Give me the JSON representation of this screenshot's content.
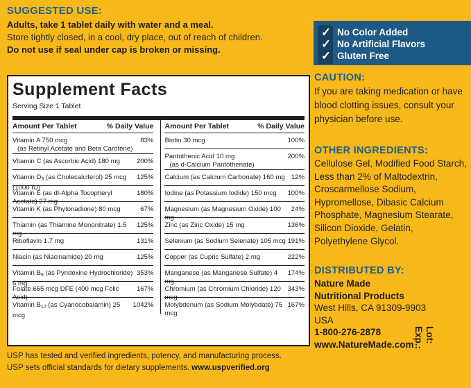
{
  "suggested_use": {
    "title": "SUGGESTED USE:",
    "line1": "Adults, take 1 tablet daily with water and a meal.",
    "line2": "Store tightly closed, in a cool, dry place, out of reach of children.",
    "line3": "Do not use if seal under cap is broken or missing."
  },
  "checks": [
    {
      "icon": "checkmark-icon",
      "label": "No Color Added"
    },
    {
      "icon": "checkmark-icon",
      "label": "No Artificial Flavors"
    },
    {
      "icon": "checkmark-icon",
      "label": "Gluten Free"
    }
  ],
  "caution": {
    "title": "CAUTION:",
    "text": "If you are taking medication or have blood clotting issues, consult your physician before use."
  },
  "other_ingredients": {
    "title": "OTHER INGREDIENTS:",
    "text": "Cellulose Gel, Modified Food Starch, Less than 2% of Maltodextrin, Croscarmellose Sodium, Hypromellose, Dibasic Calcium Phosphate, Magnesium Stearate, Silicon Dioxide, Gelatin, Polyethylene Glycol."
  },
  "distributed": {
    "title": "DISTRIBUTED BY:",
    "company1": "Nature Made",
    "company2": "Nutritional Products",
    "city": "West Hills, CA 91309-9903",
    "country": "USA",
    "phone": "1-800-276-2878",
    "web": "www.NatureMade.com"
  },
  "lot": {
    "lot": "Lot:",
    "exp": "Exp.:"
  },
  "facts": {
    "title": "Supplement Facts",
    "serving": "Serving Size 1 Tablet",
    "col_amount": "Amount Per Tablet",
    "col_dv": "% Daily Value",
    "left": [
      {
        "pre": "Vitamin A 750 mcg",
        "sub": "",
        "post": "",
        "line2": "(as Retinyl Acetate and Beta Carotene)",
        "dv": "83%"
      },
      {
        "pre": "Vitamin C (as Ascorbic Acid) 180 mg",
        "sub": "",
        "post": "",
        "line2": "",
        "dv": "200%"
      },
      {
        "pre": "Vitamin D",
        "sub": "3",
        "post": " (as Cholecalciferol) 25 mcg (1000 IU)",
        "line2": "",
        "dv": "125%"
      },
      {
        "pre": "Vitamin E (as dl-Alpha Tocopheryl Acetate) 27 mg",
        "sub": "",
        "post": "",
        "line2": "",
        "dv": "180%"
      },
      {
        "pre": "Vitamin K (as Phytonadione) 80 mcg",
        "sub": "",
        "post": "",
        "line2": "",
        "dv": "67%"
      },
      {
        "pre": "Thiamin (as Thiamine Mononitrate) 1.5 mg",
        "sub": "",
        "post": "",
        "line2": "",
        "dv": "125%"
      },
      {
        "pre": "Riboflavin 1.7 mg",
        "sub": "",
        "post": "",
        "line2": "",
        "dv": "131%"
      },
      {
        "pre": "Niacin (as Niacinamide) 20 mg",
        "sub": "",
        "post": "",
        "line2": "",
        "dv": "125%"
      },
      {
        "pre": "Vitamin B",
        "sub": "6",
        "post": " (as Pyridoxine Hydrochloride) 6 mg",
        "line2": "",
        "dv": "353%"
      },
      {
        "pre": "Folate 665 mcg DFE (400 mcg Folic Acid)",
        "sub": "",
        "post": "",
        "line2": "",
        "dv": "167%"
      },
      {
        "pre": "Vitamin B",
        "sub": "12",
        "post": " (as Cyanocobalamin) 25 mcg",
        "line2": "",
        "dv": "1042%"
      }
    ],
    "right": [
      {
        "pre": "Biotin 30 mcg",
        "sub": "",
        "post": "",
        "line2": "",
        "dv": "100%"
      },
      {
        "pre": "Pantothenic Acid 10 mg",
        "sub": "",
        "post": "",
        "line2": "(as d-Calcium Pantothenate)",
        "dv": "200%"
      },
      {
        "pre": "Calcium (as Calcium Carbonate) 160 mg",
        "sub": "",
        "post": "",
        "line2": "",
        "dv": "12%"
      },
      {
        "pre": "Iodine (as Potassium Iodide) 150 mcg",
        "sub": "",
        "post": "",
        "line2": "",
        "dv": "100%"
      },
      {
        "pre": "Magnesium (as Magnesium Oxide) 100 mg",
        "sub": "",
        "post": "",
        "line2": "",
        "dv": "24%"
      },
      {
        "pre": "Zinc (as Zinc Oxide) 15 mg",
        "sub": "",
        "post": "",
        "line2": "",
        "dv": "136%"
      },
      {
        "pre": "Selenium (as Sodium Selenate) 105 mcg",
        "sub": "",
        "post": "",
        "line2": "",
        "dv": "191%"
      },
      {
        "pre": "Copper (as Cupric Sulfate) 2 mg",
        "sub": "",
        "post": "",
        "line2": "",
        "dv": "222%"
      },
      {
        "pre": "Manganese (as Manganese Sulfate) 4 mg",
        "sub": "",
        "post": "",
        "line2": "",
        "dv": "174%"
      },
      {
        "pre": "Chromium (as Chromium Chloride) 120 mcg",
        "sub": "",
        "post": "",
        "line2": "",
        "dv": "343%"
      },
      {
        "pre": "Molybdenum (as Sodium Molybdate) 75 mcg",
        "sub": "",
        "post": "",
        "line2": "",
        "dv": "167%"
      }
    ]
  },
  "usp": {
    "line1": "USP has tested and verified ingredients, potency, and manufacturing process.",
    "line2_pre": "USP sets official standards for dietary supplements. ",
    "line2_link": "www.uspverified.org"
  },
  "colors": {
    "background": "#f7b819",
    "blue": "#1f5f8b",
    "badge": "#1f5a86"
  }
}
